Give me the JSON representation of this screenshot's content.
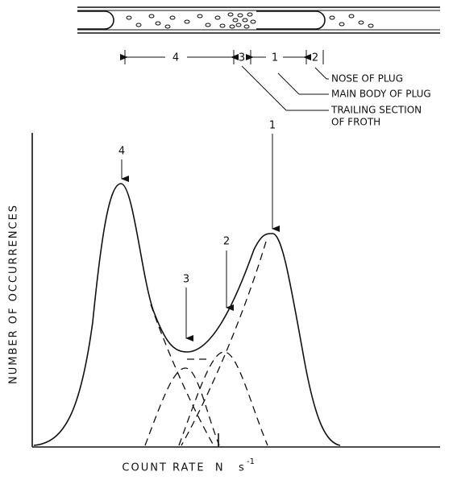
{
  "pipe": {
    "segments": [
      "4",
      "3",
      "1",
      "2"
    ],
    "annotations": {
      "nose": "NOSE OF PLUG",
      "main_body": "MAIN BODY OF PLUG",
      "trailing": [
        "TRAILING SECTION",
        "OF FROTH"
      ]
    }
  },
  "plot": {
    "peak_labels": [
      "4",
      "3",
      "2",
      "1"
    ],
    "y_label": "NUMBER OF OCCURRENCES",
    "x_label": "COUNT RATE  N",
    "x_unit": "s",
    "x_unit_exponent": "-1"
  }
}
